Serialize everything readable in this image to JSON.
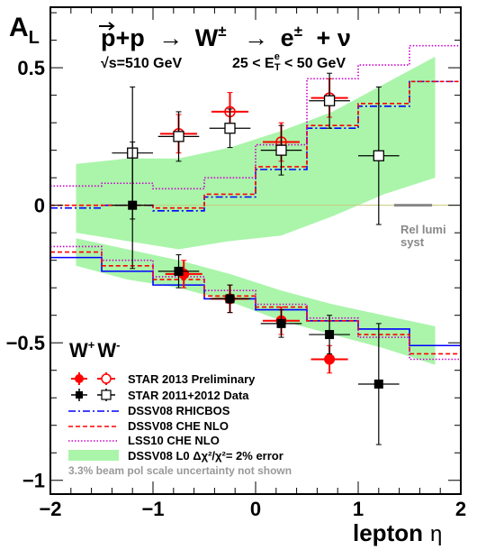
{
  "chart_data": {
    "type": "scatter",
    "title_parts": {
      "p1": "p",
      "pp": "+p",
      "arrow1": "→",
      "w": "W",
      "w_sup": "±",
      "arrow2": "→",
      "e": "e",
      "e_sup": "±",
      "plusnu": "+ ν"
    },
    "subtitle_sqrt": "√s=510 GeV",
    "subtitle_cut_left": "25 < E",
    "subtitle_cut_sup": "e",
    "subtitle_cut_sub": "T",
    "subtitle_cut_right": " < 50 GeV",
    "ylabel_main": "A",
    "ylabel_sub": "L",
    "xlabel": "lepton",
    "xlabel_symbol": "η",
    "xlim": [
      -2,
      2
    ],
    "ylim": [
      -1.05,
      0.72
    ],
    "x_ticks": [
      -2,
      -1,
      0,
      1,
      2
    ],
    "x_tick_labels": [
      "−2",
      "−1",
      "0",
      "1",
      "2"
    ],
    "y_ticks": [
      -1,
      -0.5,
      0,
      0.5
    ],
    "y_tick_labels": [
      "−1",
      "−0.5",
      "0",
      "0.5"
    ],
    "wlabel": {
      "w1": "W",
      "s1": "+",
      "w2": "W",
      "s2": "-"
    },
    "rel_lumi": {
      "line1": "Rel lumi",
      "line2": "syst",
      "x_range": [
        1.35,
        1.72
      ],
      "y": 0.0
    },
    "bottom_note": "3.3% beam pol scale uncertainty not shown",
    "legend": [
      {
        "label": "STAR 2013 Preliminary",
        "color": "#ff0000"
      },
      {
        "label": "STAR 2011+2012 Data",
        "color": "#000000"
      },
      {
        "label": "DSSV08  RHICBOS",
        "color": "#0000ff"
      },
      {
        "label": "DSSV08  CHE NLO",
        "color": "#ff0000"
      },
      {
        "label": "LSS10 CHE NLO",
        "color": "#cc00cc"
      },
      {
        "label": "DSSV08 L0  Δχ²/χ²= 2% error",
        "color": "#aaf5aa"
      }
    ],
    "legend_extra_w": "W",
    "band_wplus": {
      "x": [
        -1.75,
        -1.25,
        -0.75,
        -0.25,
        0.25,
        0.75,
        1.25,
        1.75
      ],
      "upper": [
        0.15,
        0.17,
        0.17,
        0.21,
        0.27,
        0.34,
        0.44,
        0.54
      ],
      "lower": [
        -0.1,
        -0.13,
        -0.16,
        -0.13,
        -0.11,
        -0.04,
        0.04,
        0.1
      ]
    },
    "band_wminus": {
      "x": [
        -1.75,
        -1.25,
        -0.75,
        -0.25,
        0.25,
        0.75,
        1.25,
        1.75
      ],
      "upper": [
        -0.12,
        -0.16,
        -0.2,
        -0.25,
        -0.31,
        -0.36,
        -0.4,
        -0.44
      ],
      "lower": [
        -0.22,
        -0.27,
        -0.3,
        -0.35,
        -0.42,
        -0.47,
        -0.52,
        -0.58
      ]
    },
    "edges": [
      -2,
      -1.5,
      -1,
      -0.5,
      0,
      0.5,
      1,
      1.5,
      2
    ],
    "theory": [
      {
        "name": "DSSV08  RHICBOS (W+)",
        "color": "#0000ff",
        "dash": "8,3,2,3",
        "values": [
          -0.01,
          0.0,
          -0.02,
          0.03,
          0.13,
          0.28,
          0.36,
          0.45
        ]
      },
      {
        "name": "DSSV08  CHE NLO (W+)",
        "color": "#ff0000",
        "dash": "5,3",
        "values": [
          0.0,
          0.0,
          -0.01,
          0.04,
          0.14,
          0.29,
          0.37,
          0.45
        ]
      },
      {
        "name": "LSS10 CHE NLO (W+)",
        "color": "#cc00cc",
        "dash": "1.5,2",
        "values": [
          0.07,
          0.08,
          0.06,
          0.1,
          0.22,
          0.46,
          0.51,
          0.58
        ]
      },
      {
        "name": "DSSV08  RHICBOS (W-)",
        "color": "#0000ff",
        "dash": "",
        "values": [
          -0.19,
          -0.24,
          -0.29,
          -0.34,
          -0.38,
          -0.42,
          -0.45,
          -0.51
        ]
      },
      {
        "name": "DSSV08  CHE NLO (W-)",
        "color": "#ff0000",
        "dash": "5,3",
        "values": [
          -0.17,
          -0.22,
          -0.27,
          -0.33,
          -0.37,
          -0.42,
          -0.47,
          -0.54
        ]
      },
      {
        "name": "LSS10 CHE NLO (W-)",
        "color": "#cc00cc",
        "dash": "1.5,2",
        "values": [
          -0.15,
          -0.2,
          -0.26,
          -0.31,
          -0.36,
          -0.41,
          -0.48,
          -0.56
        ]
      }
    ],
    "points": [
      {
        "set": "STAR 2013 W+",
        "x": -0.75,
        "y": 0.26,
        "ex": 0.18,
        "ey": 0.07,
        "color": "#ff0000",
        "marker": "circle-open"
      },
      {
        "set": "STAR 2013 W+",
        "x": -0.25,
        "y": 0.34,
        "ex": 0.18,
        "ey": 0.07,
        "color": "#ff0000",
        "marker": "circle-open"
      },
      {
        "set": "STAR 2013 W+",
        "x": 0.25,
        "y": 0.23,
        "ex": 0.18,
        "ey": 0.07,
        "color": "#ff0000",
        "marker": "circle-open"
      },
      {
        "set": "STAR 2013 W+",
        "x": 0.72,
        "y": 0.39,
        "ex": 0.18,
        "ey": 0.07,
        "color": "#ff0000",
        "marker": "circle-open"
      },
      {
        "set": "STAR 2011+2012 W+",
        "x": -1.2,
        "y": 0.19,
        "ex": 0.2,
        "ey": 0.24,
        "color": "#000000",
        "marker": "square-open"
      },
      {
        "set": "STAR 2011+2012 W+",
        "x": -0.75,
        "y": 0.25,
        "ex": 0.2,
        "ey": 0.09,
        "color": "#000000",
        "marker": "square-open"
      },
      {
        "set": "STAR 2011+2012 W+",
        "x": -0.25,
        "y": 0.28,
        "ex": 0.2,
        "ey": 0.07,
        "color": "#000000",
        "marker": "square-open"
      },
      {
        "set": "STAR 2011+2012 W+",
        "x": 0.25,
        "y": 0.2,
        "ex": 0.2,
        "ey": 0.09,
        "color": "#000000",
        "marker": "square-open"
      },
      {
        "set": "STAR 2011+2012 W+",
        "x": 0.72,
        "y": 0.38,
        "ex": 0.2,
        "ey": 0.1,
        "color": "#000000",
        "marker": "square-open"
      },
      {
        "set": "STAR 2011+2012 W+",
        "x": 1.2,
        "y": 0.18,
        "ex": 0.2,
        "ey": 0.25,
        "color": "#000000",
        "marker": "square-open"
      },
      {
        "set": "STAR 2013 W-",
        "x": -0.7,
        "y": -0.25,
        "ex": 0.18,
        "ey": 0.05,
        "color": "#ff0000",
        "marker": "circle-filled"
      },
      {
        "set": "STAR 2013 W-",
        "x": -0.25,
        "y": -0.34,
        "ex": 0.18,
        "ey": 0.05,
        "color": "#ff0000",
        "marker": "circle-filled"
      },
      {
        "set": "STAR 2013 W-",
        "x": 0.25,
        "y": -0.42,
        "ex": 0.18,
        "ey": 0.05,
        "color": "#ff0000",
        "marker": "circle-filled"
      },
      {
        "set": "STAR 2013 W-",
        "x": 0.72,
        "y": -0.56,
        "ex": 0.18,
        "ey": 0.05,
        "color": "#ff0000",
        "marker": "circle-filled"
      },
      {
        "set": "STAR 2011+2012 W-",
        "x": -1.2,
        "y": 0.0,
        "ex": 0.2,
        "ey": 0.23,
        "color": "#000000",
        "marker": "square-filled"
      },
      {
        "set": "STAR 2011+2012 W-",
        "x": -0.75,
        "y": -0.24,
        "ex": 0.2,
        "ey": 0.06,
        "color": "#000000",
        "marker": "square-filled"
      },
      {
        "set": "STAR 2011+2012 W-",
        "x": -0.25,
        "y": -0.34,
        "ex": 0.2,
        "ey": 0.05,
        "color": "#000000",
        "marker": "square-filled"
      },
      {
        "set": "STAR 2011+2012 W-",
        "x": 0.25,
        "y": -0.43,
        "ex": 0.2,
        "ey": 0.05,
        "color": "#000000",
        "marker": "square-filled"
      },
      {
        "set": "STAR 2011+2012 W-",
        "x": 0.72,
        "y": -0.47,
        "ex": 0.2,
        "ey": 0.07,
        "color": "#000000",
        "marker": "square-filled"
      },
      {
        "set": "STAR 2011+2012 W-",
        "x": 1.2,
        "y": -0.65,
        "ex": 0.2,
        "ey": 0.22,
        "color": "#000000",
        "marker": "square-filled"
      }
    ],
    "grid": false
  }
}
